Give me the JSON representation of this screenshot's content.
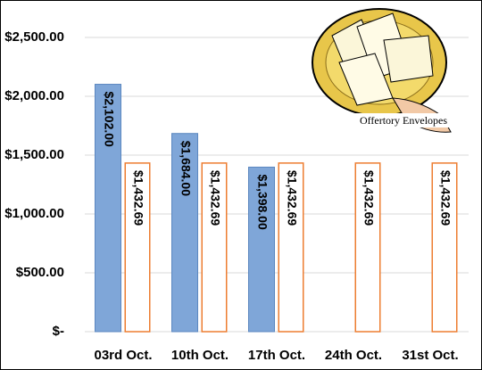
{
  "chart_data": {
    "type": "bar",
    "categories": [
      "03rd Oct.",
      "10th Oct.",
      "17th Oct.",
      "24th Oct.",
      "31st Oct."
    ],
    "series": [
      {
        "color": "#7fa6d8",
        "values": [
          2102,
          1684,
          1398,
          null,
          null
        ],
        "value_labels": [
          "$2,102.00",
          "$1,684.00",
          "$1,398.00",
          null,
          null
        ]
      },
      {
        "color": "#ed7d31",
        "values": [
          1432.69,
          1432.69,
          1432.69,
          1432.69,
          1432.69
        ],
        "value_labels": [
          "$1,432.69",
          "$1,432.69",
          "$1,432.69",
          "$1,432.69",
          "$1,432.69"
        ]
      }
    ],
    "ylim": [
      0,
      2500
    ],
    "yticks": [
      {
        "value": 0,
        "label": "$-"
      },
      {
        "value": 500,
        "label": "$500.00"
      },
      {
        "value": 1000,
        "label": "$1,000.00"
      },
      {
        "value": 1500,
        "label": "$1,500.00"
      },
      {
        "value": 2000,
        "label": "$2,000.00"
      },
      {
        "value": 2500,
        "label": "$2,500.00"
      }
    ],
    "grid": true,
    "image_caption": "Offertory Envelopes"
  }
}
